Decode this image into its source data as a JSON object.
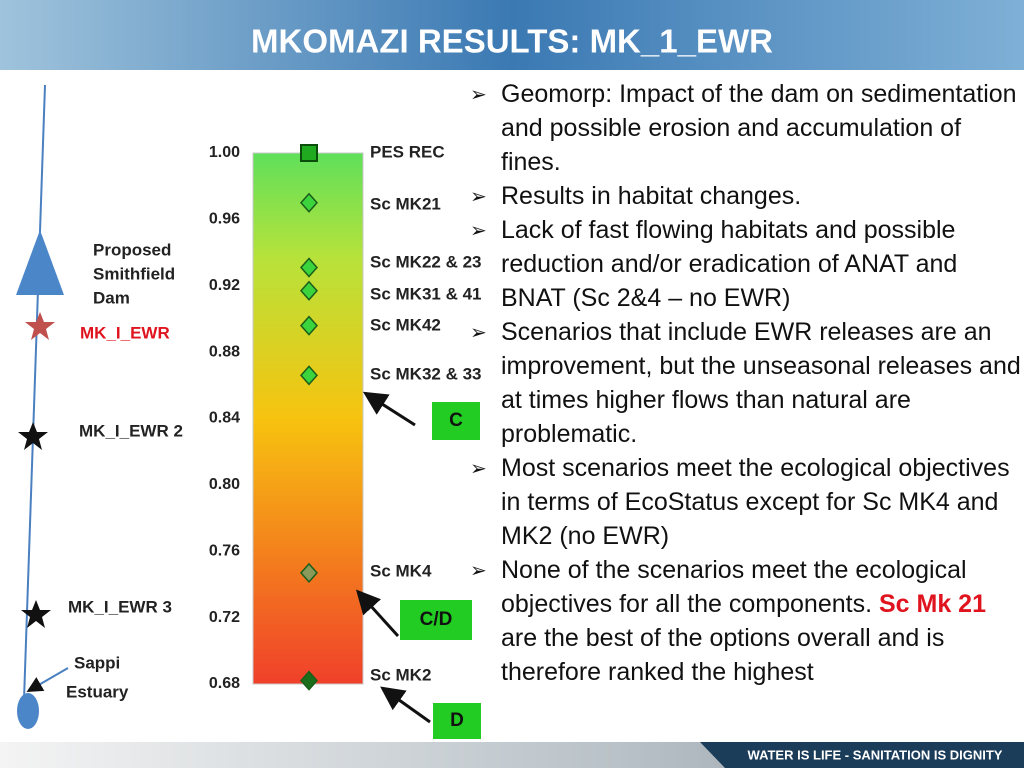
{
  "title": "MKOMAZI RESULTS: MK_1_EWR",
  "footer": "WATER IS LIFE - SANITATION IS DIGNITY",
  "river": {
    "dam": [
      "Proposed",
      "Smithfield",
      "Dam"
    ],
    "site_1": "MK_I_EWR",
    "site_2": "MK_I_EWR 2",
    "site_3": "MK_I_EWR 3",
    "estuary": [
      "Sappi",
      "Estuary"
    ]
  },
  "chart_data": {
    "type": "dot",
    "categories": [
      "PES REC",
      "Sc MK21",
      "Sc MK22 & 23",
      "Sc MK31 & 41",
      "Sc MK42",
      "Sc MK32 & 33",
      "Sc MK4",
      "Sc MK2"
    ],
    "values": [
      1.0,
      0.97,
      0.931,
      0.917,
      0.896,
      0.866,
      0.747,
      0.682
    ],
    "point_shapes": [
      "square",
      "diamond",
      "diamond",
      "diamond",
      "diamond",
      "diamond",
      "diamond",
      "diamond"
    ],
    "point_colors": [
      "#1faa1f",
      "#3cd43c",
      "#3cd43c",
      "#3cd43c",
      "#3cd43c",
      "#3cd43c",
      "#8a9a5a",
      "#1a6e1a"
    ],
    "ylim": [
      0.68,
      1.0
    ],
    "yticks": [
      {
        "value": 1.0,
        "label": "1.00"
      },
      0.96,
      0.92,
      0.88,
      0.84,
      {
        "value": 0.8,
        "label": "0.80"
      },
      0.76,
      0.72,
      0.68
    ],
    "annotations": [
      {
        "label": "C",
        "value": 0.86
      },
      {
        "label": "C/D",
        "value": 0.74
      },
      {
        "label": "D",
        "value": 0.68
      }
    ]
  },
  "bullets": [
    [
      "Geomorp: Impact of the dam on sedimentation and possible erosion and accumulation of fines."
    ],
    [
      "Results in habitat changes."
    ],
    [
      "Lack of fast flowing habitats and possible reduction and/or eradication of ANAT and BNAT (Sc 2&4 – no EWR)"
    ],
    [
      "Scenarios that include EWR releases are an improvement, but the unseasonal releases and at times higher flows than natural are problematic."
    ],
    [
      "Most scenarios meet the ecological objectives in terms of EcoStatus except for Sc MK4 and MK2 (no EWR)"
    ],
    [
      "None of the scenarios meet the ecological objectives for all the components.  ",
      "Sc Mk 21",
      " are the best of the options overall and is therefore ranked the highest"
    ]
  ]
}
